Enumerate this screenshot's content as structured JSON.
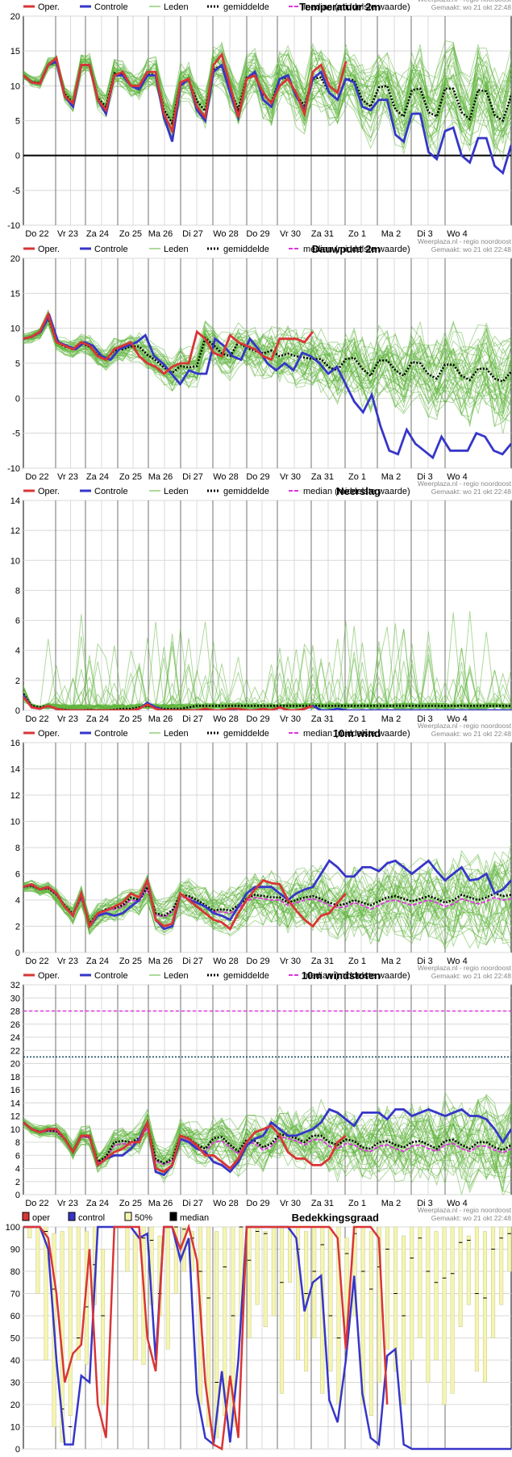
{
  "days": [
    "Do 22",
    "Vr 23",
    "Za 24",
    "Zo 25",
    "Ma 26",
    "Di 27",
    "Wo 28",
    "Do 29",
    "Vr 30",
    "Za 31",
    "Zo 1",
    "Ma 2",
    "Di 3",
    "Wo 4"
  ],
  "legend": {
    "oper": "Oper.",
    "controle": "Controle",
    "leden": "Leden",
    "gemiddelde": "gemiddelde",
    "median": "median (middelste waarde)"
  },
  "source": "Weerplaza.nl - regio noordoost",
  "made": "Gemaakt: wo 21 okt 22:48",
  "colors": {
    "oper": "#d93535",
    "control": "#3636c8",
    "member": "#5fb53c",
    "mean": "#000000",
    "median": "#e033e0"
  },
  "chart_data": [
    {
      "type": "line",
      "title": "Temperatuur 2m",
      "ylim": [
        -10,
        20
      ],
      "yticks": [
        -10,
        -5,
        0,
        5,
        10,
        15,
        20
      ],
      "zero_line": true,
      "oper": [
        11.5,
        10.5,
        10.3,
        13,
        14,
        8.5,
        7.5,
        13,
        13,
        8,
        6.5,
        11.5,
        12,
        10,
        10,
        12,
        12,
        6,
        3.5,
        10.5,
        11,
        7,
        5.5,
        13,
        14.5,
        10,
        5.5,
        11,
        11.5,
        9,
        7.5,
        10,
        11,
        9,
        6,
        12,
        13,
        10,
        9,
        13.5
      ],
      "control": [
        11.5,
        10.5,
        10.3,
        13,
        13.5,
        8.5,
        7,
        13,
        13,
        8,
        6,
        11.5,
        11.5,
        10,
        9.5,
        11.5,
        11.5,
        5.5,
        2,
        10,
        11,
        6.5,
        5,
        12,
        13,
        9,
        5.5,
        11,
        12,
        8,
        7,
        11,
        11.5,
        8.5,
        6.5,
        11,
        12,
        9,
        8,
        11,
        10.5,
        7,
        6.5,
        8,
        8,
        3,
        2,
        6,
        6,
        0.5,
        -0.5,
        3.5,
        4,
        0,
        -1,
        2.5,
        2.5,
        -1.5,
        -2.5,
        1.5
      ],
      "mean": [
        11.5,
        10.6,
        10.4,
        13,
        13.4,
        8.8,
        7.6,
        13,
        13,
        8.2,
        7,
        11.8,
        11.6,
        10,
        9.6,
        11.6,
        11.6,
        6.6,
        4.6,
        10.4,
        10.8,
        7.8,
        6.4,
        12.4,
        12.8,
        9.6,
        6.6,
        11.2,
        11.4,
        8.8,
        7.6,
        11,
        11.2,
        8.6,
        7.2,
        11,
        11.2,
        9,
        8,
        11,
        10.8,
        8,
        7,
        9.8,
        10,
        6.6,
        5.6,
        9.4,
        9.6,
        6.2,
        5.6,
        9.6,
        9.6,
        6.2,
        5.2,
        9.4,
        9.2,
        5.8,
        5,
        8.6
      ]
    },
    {
      "type": "line",
      "title": "Dauwpunt 2m",
      "ylim": [
        -10,
        20
      ],
      "yticks": [
        -10,
        -5,
        0,
        5,
        10,
        15,
        20
      ],
      "zero_line": false,
      "oper": [
        8.5,
        8.8,
        9.5,
        12,
        8,
        7.5,
        7,
        8,
        7.5,
        6,
        5.5,
        7,
        7.5,
        8,
        6,
        5,
        4.5,
        3.5,
        4.5,
        5,
        5,
        9.5,
        8.5,
        6.5,
        6,
        9,
        8,
        7.5,
        7,
        6,
        5.5,
        8.5,
        8.5,
        8.5,
        8,
        9.5
      ],
      "control": [
        8.5,
        8.8,
        9.5,
        11.8,
        8,
        7.5,
        7,
        8,
        7.5,
        6,
        5.5,
        7,
        7.5,
        8,
        9,
        6,
        5,
        3.5,
        2,
        4,
        3.5,
        3.5,
        8.5,
        7.5,
        6,
        5.5,
        8.5,
        7,
        5,
        4,
        5,
        4,
        6.5,
        6,
        5,
        3.5,
        4.5,
        2,
        -0.5,
        -2,
        0.5,
        -4,
        -7.5,
        -8,
        -4.5,
        -6.5,
        -7.5,
        -8.5,
        -5.5,
        -7.5,
        -7.5,
        -7.5,
        -5,
        -5.5,
        -7.5,
        -8,
        -6.5
      ],
      "mean": [
        8.5,
        8.8,
        9.4,
        11.6,
        8,
        7.4,
        7,
        7.8,
        7.4,
        6.2,
        5.6,
        6.8,
        7,
        7.4,
        7.4,
        6.2,
        5.4,
        4.4,
        3.6,
        4.6,
        4.4,
        4.6,
        8.6,
        7.6,
        6.4,
        6,
        8,
        7.2,
        6.8,
        6.4,
        6.8,
        6,
        6.4,
        6,
        5.8,
        5.6,
        5.6,
        4.4,
        4,
        5.6,
        5.8,
        4.2,
        3.2,
        5.4,
        5.4,
        4,
        3.2,
        5.2,
        5,
        3.4,
        2.8,
        4.8,
        4.8,
        3.2,
        2.6,
        4.2,
        4.2,
        2.8,
        2.4,
        3.8
      ]
    },
    {
      "type": "line",
      "title": "Neerslag",
      "ylim": [
        0,
        14
      ],
      "yticks": [
        0,
        2,
        4,
        6,
        8,
        10,
        12,
        14
      ],
      "zero_line": false,
      "oper": [
        0.9,
        0.2,
        0.1,
        0.3,
        0.1,
        0,
        0,
        0,
        0,
        0,
        0,
        0,
        0,
        0,
        0.1,
        0.4,
        0.1,
        0,
        0,
        0,
        0,
        0,
        0.1,
        0,
        0,
        0.1,
        0.1,
        0,
        0,
        0.1,
        0,
        0.2,
        0,
        0,
        0.1,
        0.3
      ],
      "control": [
        1,
        0.2,
        0.1,
        0.3,
        0.1,
        0,
        0,
        0,
        0,
        0,
        0,
        0,
        0,
        0,
        0.1,
        0.5,
        0.2,
        0,
        0,
        0,
        0,
        0,
        0,
        0,
        0,
        0,
        0.1,
        0,
        0,
        0.1,
        0,
        0.2,
        0,
        0,
        0.1,
        0.3,
        0,
        0,
        0.1,
        0,
        0,
        0,
        0,
        0,
        0,
        0,
        0,
        0,
        0,
        0,
        0,
        0,
        0,
        0,
        0,
        0,
        0,
        0,
        0,
        0
      ],
      "mean": [
        1.1,
        0.3,
        0.2,
        0.3,
        0.1,
        0.05,
        0,
        0,
        0.05,
        0,
        0,
        0.05,
        0.1,
        0.1,
        0.2,
        0.3,
        0.2,
        0.1,
        0.1,
        0.1,
        0.2,
        0.3,
        0.3,
        0.3,
        0.3,
        0.3,
        0.3,
        0.3,
        0.3,
        0.3,
        0.3,
        0.3,
        0.3,
        0.3,
        0.3,
        0.3,
        0.3,
        0.3,
        0.3,
        0.3,
        0.3,
        0.3,
        0.3,
        0.3,
        0.3,
        0.3,
        0.3,
        0.3,
        0.3,
        0.3,
        0.3,
        0.3,
        0.3,
        0.3,
        0.3,
        0.3,
        0.3,
        0.3,
        0.3,
        0.3
      ]
    },
    {
      "type": "line",
      "title": "10m wind",
      "ylim": [
        0,
        16
      ],
      "yticks": [
        0,
        2,
        4,
        6,
        8,
        10,
        12,
        14,
        16
      ],
      "zero_line": false,
      "oper": [
        5,
        5.2,
        4.8,
        5,
        4.5,
        3.5,
        2.8,
        4.5,
        2,
        3,
        3.2,
        3.5,
        3.8,
        4.5,
        4.2,
        5.5,
        2.5,
        2,
        2.2,
        4.5,
        4,
        3.5,
        3,
        2.5,
        2.3,
        1.8,
        3,
        4,
        4.8,
        5.5,
        5.3,
        5.2,
        4,
        3.2,
        2.5,
        2,
        2.8,
        3,
        3.8,
        4.5
      ],
      "control": [
        5,
        5.2,
        4.8,
        5,
        4.5,
        3.5,
        2.8,
        4.5,
        2,
        2.8,
        3,
        2.8,
        3,
        3.5,
        4,
        5.5,
        2.5,
        1.8,
        2,
        4.5,
        4,
        3.8,
        3.5,
        3,
        2.8,
        2.5,
        3.5,
        4.5,
        5,
        5,
        5,
        4.5,
        4,
        4.5,
        4.8,
        5,
        6,
        7,
        6.5,
        5.8,
        5.8,
        6.5,
        6.5,
        6.2,
        6.8,
        7,
        6.5,
        6,
        6.5,
        7,
        6.2,
        5.5,
        6,
        6.5,
        5.5,
        5.6,
        6,
        4.5,
        4.8,
        5.5
      ],
      "mean": [
        5,
        5.1,
        4.8,
        4.9,
        4.4,
        3.6,
        2.9,
        4.3,
        2.2,
        3,
        3.3,
        3.4,
        3.6,
        4.2,
        4,
        5,
        3,
        2.8,
        3.2,
        4.4,
        4.3,
        4,
        3.6,
        3.2,
        3.3,
        3.2,
        3.6,
        4.1,
        4.4,
        4.3,
        4.2,
        4.2,
        3.8,
        4,
        4.2,
        4.3,
        4.1,
        3.8,
        3.6,
        3.7,
        4,
        3.8,
        3.6,
        3.9,
        4.2,
        4.3,
        4.1,
        3.9,
        4.1,
        4.3,
        4.1,
        3.8,
        4,
        4.4,
        4.2,
        4,
        4.2,
        4.5,
        4.3,
        4.4
      ],
      "median": [
        5,
        5.1,
        4.8,
        4.9,
        4.4,
        3.5,
        2.8,
        4.2,
        2.1,
        2.9,
        3.2,
        3.3,
        3.5,
        4,
        3.9,
        4.8,
        2.9,
        2.7,
        3.1,
        4.2,
        4.2,
        3.8,
        3.5,
        3.1,
        3.1,
        3,
        3.4,
        3.9,
        4.2,
        4.1,
        4,
        4,
        3.6,
        3.8,
        4,
        4.1,
        3.9,
        3.6,
        3.4,
        3.5,
        3.8,
        3.6,
        3.3,
        3.6,
        3.9,
        4,
        3.8,
        3.6,
        3.8,
        4,
        3.8,
        3.5,
        3.7,
        4.1,
        3.9,
        3.7,
        3.9,
        4.2,
        4,
        4.1
      ]
    },
    {
      "type": "line",
      "title": "10m windstoten",
      "ylim": [
        0,
        32
      ],
      "yticks": [
        0,
        2,
        4,
        6,
        8,
        10,
        12,
        14,
        16,
        18,
        20,
        22,
        24,
        26,
        28,
        30,
        32
      ],
      "thresholds": [
        28,
        21
      ],
      "zero_line": false,
      "oper": [
        11,
        10,
        9.5,
        10,
        10,
        8.5,
        6.5,
        9,
        9,
        4.5,
        5.5,
        6.5,
        7,
        8,
        8,
        11,
        4,
        3.5,
        4.5,
        9,
        8.5,
        7.5,
        6,
        6,
        5,
        4,
        5.5,
        8,
        9.5,
        10,
        10.5,
        9,
        6.5,
        5.5,
        5.5,
        4.5,
        4.5,
        5.5,
        8,
        9
      ],
      "control": [
        11,
        10,
        9.5,
        10,
        10,
        8.5,
        6.5,
        9,
        9,
        4.5,
        5.5,
        6,
        6,
        7,
        8.5,
        11,
        3.5,
        3,
        4.5,
        8.5,
        8,
        7,
        6.5,
        5,
        4.5,
        3.5,
        5,
        7.5,
        8.5,
        9,
        11,
        10,
        9,
        9,
        9.5,
        10,
        11,
        13,
        12.5,
        11.5,
        10.5,
        12.5,
        12.5,
        12.5,
        11.5,
        13,
        13,
        12,
        12.5,
        13,
        12.5,
        12,
        12.5,
        13,
        12,
        12,
        11.5,
        10,
        8,
        10
      ],
      "mean": [
        11,
        10,
        9.6,
        9.8,
        9.7,
        8.5,
        6.6,
        9,
        8.8,
        5,
        5.8,
        8,
        8.2,
        8,
        8.6,
        10.6,
        5.4,
        4.8,
        5.4,
        9,
        8.6,
        7.6,
        7,
        8.6,
        8.8,
        7.6,
        6.6,
        8.4,
        8.2,
        7.2,
        7.8,
        9.2,
        9,
        8.6,
        8,
        9,
        9,
        8,
        7.6,
        8.4,
        8.2,
        7.2,
        7,
        8,
        8.2,
        7.6,
        7.2,
        8,
        8.2,
        7.6,
        7,
        8.2,
        8.4,
        7.6,
        7,
        8,
        8,
        7.2,
        6.8,
        7.6
      ],
      "median": [
        11,
        10,
        9.5,
        9.7,
        9.6,
        8.4,
        6.5,
        8.8,
        8.7,
        4.9,
        5.6,
        7.5,
        7.8,
        7.6,
        8.2,
        10.2,
        5.2,
        4.6,
        5.2,
        8.6,
        8.2,
        7.2,
        6.6,
        8,
        8.2,
        7.2,
        6.2,
        8,
        7.8,
        6.8,
        7.4,
        8.8,
        8.6,
        8.2,
        7.6,
        8.4,
        8.4,
        7.4,
        7,
        7.8,
        7.6,
        6.8,
        6.6,
        7.4,
        7.6,
        7,
        6.6,
        7.4,
        7.6,
        7,
        6.6,
        7.6,
        7.8,
        7,
        6.6,
        7.4,
        7.4,
        6.8,
        6.4,
        7
      ]
    },
    {
      "type": "bar",
      "title": "Bedekkingsgraad",
      "legend": {
        "oper": "oper",
        "control": "control",
        "p50": "50%",
        "median": "median"
      },
      "ylim": [
        0,
        100
      ],
      "yticks": [
        0,
        10,
        20,
        30,
        40,
        50,
        60,
        70,
        80,
        90,
        100
      ],
      "oper": [
        100,
        100,
        100,
        95,
        70,
        30,
        43,
        47,
        90,
        20,
        5,
        100,
        100,
        100,
        100,
        50,
        35,
        100,
        100,
        90,
        100,
        85,
        30,
        2,
        0,
        33,
        5,
        100,
        100,
        100,
        100,
        100,
        100,
        100,
        100,
        100,
        100,
        100,
        95,
        45,
        100,
        100,
        100,
        95,
        20
      ],
      "control": [
        100,
        100,
        100,
        90,
        40,
        2,
        2,
        33,
        30,
        100,
        100,
        100,
        100,
        100,
        95,
        97,
        40,
        100,
        100,
        85,
        95,
        25,
        5,
        2,
        35,
        3,
        40,
        100,
        100,
        100,
        100,
        100,
        100,
        95,
        62,
        75,
        78,
        22,
        12,
        40,
        78,
        25,
        5,
        2,
        42,
        45,
        2,
        0,
        0,
        0,
        0,
        0,
        0,
        0,
        0,
        0,
        0,
        0,
        0,
        0
      ],
      "band50": [
        [
          95,
          100
        ],
        [
          70,
          100
        ],
        [
          40,
          100
        ],
        [
          10,
          97
        ],
        [
          3,
          98
        ],
        [
          15,
          100
        ],
        [
          40,
          100
        ],
        [
          38,
          98
        ],
        [
          65,
          100
        ],
        [
          20,
          90
        ],
        [
          100,
          100
        ],
        [
          100,
          100
        ],
        [
          80,
          100
        ],
        [
          40,
          98
        ],
        [
          38,
          100
        ],
        [
          65,
          100
        ],
        [
          60,
          96
        ],
        [
          45,
          100
        ],
        [
          70,
          100
        ],
        [
          80,
          100
        ],
        [
          80,
          98
        ],
        [
          20,
          100
        ],
        [
          10,
          100
        ],
        [
          5,
          98
        ],
        [
          15,
          100
        ],
        [
          10,
          100
        ],
        [
          60,
          100
        ],
        [
          50,
          100
        ],
        [
          65,
          100
        ],
        [
          55,
          98
        ],
        [
          60,
          100
        ],
        [
          25,
          100
        ],
        [
          75,
          100
        ],
        [
          40,
          100
        ],
        [
          35,
          98
        ],
        [
          50,
          100
        ],
        [
          25,
          100
        ],
        [
          35,
          100
        ],
        [
          20,
          100
        ],
        [
          55,
          95
        ],
        [
          60,
          100
        ],
        [
          20,
          100
        ],
        [
          15,
          98
        ],
        [
          30,
          100
        ],
        [
          45,
          100
        ],
        [
          35,
          100
        ],
        [
          20,
          96
        ],
        [
          40,
          100
        ],
        [
          50,
          100
        ],
        [
          30,
          100
        ],
        [
          40,
          98
        ],
        [
          20,
          100
        ],
        [
          25,
          100
        ],
        [
          55,
          100
        ],
        [
          65,
          96
        ],
        [
          35,
          100
        ],
        [
          30,
          98
        ],
        [
          50,
          100
        ],
        [
          65,
          100
        ],
        [
          80,
          100
        ]
      ],
      "median": [
        100,
        100,
        98,
        72,
        18,
        10,
        50,
        64,
        83,
        60,
        100,
        100,
        100,
        100,
        95,
        94,
        70,
        100,
        100,
        99,
        95,
        80,
        68,
        30,
        82,
        60,
        100,
        85,
        98,
        97,
        100,
        75,
        100,
        90,
        70,
        80,
        92,
        60,
        50,
        88,
        97,
        80,
        72,
        82,
        90,
        70,
        60,
        86,
        95,
        80,
        75,
        77,
        79,
        93,
        94,
        70,
        68,
        90,
        95,
        97
      ]
    }
  ]
}
